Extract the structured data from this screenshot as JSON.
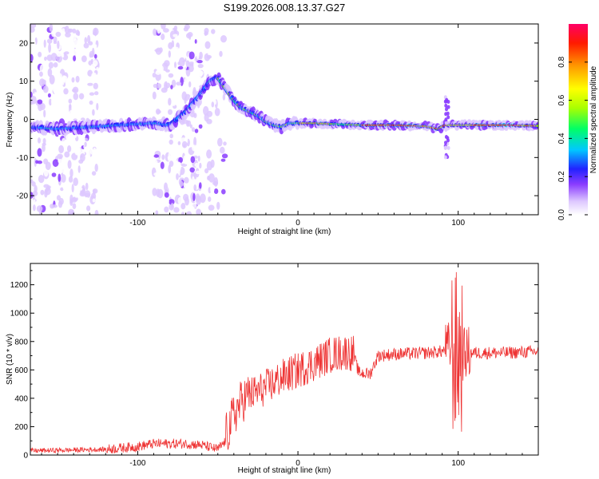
{
  "title": "S199.2026.008.13.37.G27",
  "chart_data": [
    {
      "type": "heatmap",
      "name": "spectrogram",
      "xlabel": "Height of straight line (km)",
      "ylabel": "Frequency (Hz)",
      "xlim": [
        -167,
        150
      ],
      "ylim": [
        -25,
        25
      ],
      "xticks": [
        -100,
        0,
        100
      ],
      "yticks": [
        -20,
        -10,
        0,
        10,
        20
      ],
      "ridge": {
        "x": [
          -167,
          -150,
          -130,
          -110,
          -90,
          -80,
          -70,
          -62,
          -55,
          -50,
          -45,
          -40,
          -35,
          -30,
          -25,
          -20,
          -15,
          -10,
          -5,
          0,
          10,
          20,
          40,
          60,
          80,
          88,
          92,
          96,
          100,
          110,
          130,
          150
        ],
        "y": [
          -2,
          -2.5,
          -2,
          -1.5,
          -1,
          -1.5,
          2,
          6,
          10,
          11,
          8,
          5,
          3,
          2,
          1,
          -0.5,
          -1.5,
          -2,
          -1,
          -1,
          -1,
          -1.2,
          -1.5,
          -1.5,
          -1.8,
          -2.5,
          -1.5,
          -1.5,
          -1.5,
          -1.5,
          -1.5,
          -1.7
        ]
      },
      "colorbar": {
        "label": "Normalized spectral amplitude",
        "ticks": [
          "0.0",
          "0.2",
          "0.4",
          "0.6",
          "0.8"
        ],
        "range": [
          0,
          1
        ]
      }
    },
    {
      "type": "line",
      "name": "snr",
      "xlabel": "Height of straight line (km)",
      "ylabel": "SNR (10 * v/v)",
      "xlim": [
        -167,
        150
      ],
      "ylim": [
        0,
        1350
      ],
      "xticks": [
        -100,
        0,
        100
      ],
      "yticks": [
        0,
        200,
        400,
        600,
        800,
        1000,
        1200
      ],
      "color": "#ee3333",
      "envelope": {
        "x": [
          -167,
          -120,
          -100,
          -90,
          -70,
          -60,
          -50,
          -45,
          -40,
          -35,
          -30,
          -25,
          -20,
          -10,
          0,
          10,
          20,
          30,
          35,
          38,
          45,
          50,
          60,
          80,
          90,
          95,
          98,
          100,
          102,
          105,
          110,
          130,
          150
        ],
        "y": [
          30,
          40,
          60,
          80,
          80,
          70,
          40,
          100,
          250,
          350,
          400,
          420,
          450,
          520,
          570,
          620,
          680,
          700,
          690,
          580,
          570,
          700,
          710,
          720,
          730,
          760,
          700,
          720,
          700,
          720,
          720,
          720,
          730
        ]
      }
    }
  ]
}
